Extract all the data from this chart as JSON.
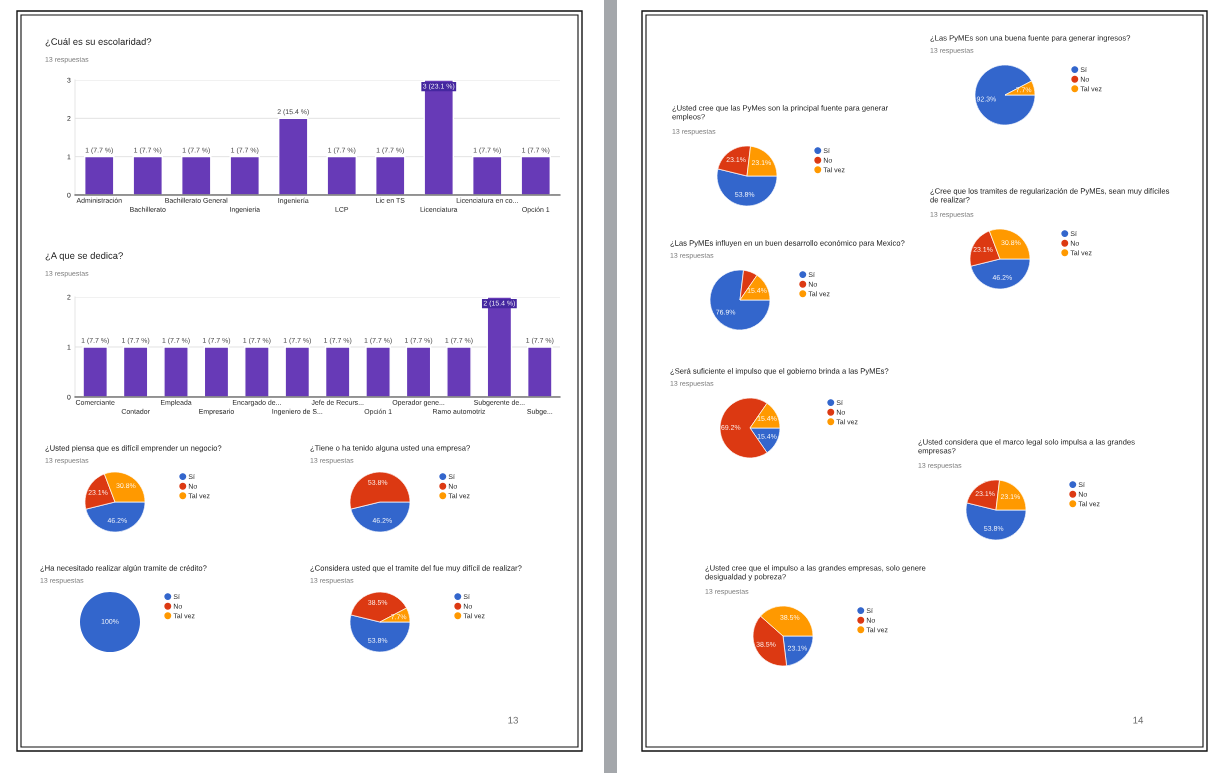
{
  "chart_data": [
    {
      "type": "pie",
      "title": "¿Las PyMEs son una buena fuente para generar ingresos?",
      "subtitle": "13 respuestas",
      "categories": [
        "Sí",
        "No",
        "Tal vez"
      ],
      "values": [
        92.3,
        0,
        7.7
      ],
      "colors": [
        "#3366cc",
        "#dc3912",
        "#ff9900"
      ],
      "value_labels": [
        "92.3%",
        null,
        "7.7%"
      ],
      "legend": "right"
    },
    {
      "type": "bar",
      "title": "¿Cuál es su escolaridad?",
      "subtitle": "13 respuestas",
      "categories": [
        "Administración",
        "Bachillerato",
        "Bachillerato General",
        "Ingenieria",
        "Ingeniería",
        "LCP",
        "Lic en TS",
        "Licenciatura",
        "Licenciatura en co...",
        "Opción 1"
      ],
      "values": [
        1,
        1,
        1,
        1,
        2,
        1,
        1,
        3,
        1,
        1
      ],
      "color": "#673ab7",
      "ylim": [
        0,
        3
      ],
      "yticks": [
        0,
        1,
        2,
        3
      ],
      "grid": "y",
      "value_labels": [
        "1 (7.7 %)",
        "1 (7.7 %)",
        "1 (7.7 %)",
        "1 (7.7 %)",
        "2 (15.4 %)",
        "1 (7.7 %)",
        "1 (7.7 %)",
        "3 (23.1 %)",
        "1 (7.7 %)",
        "1 (7.7 %)"
      ]
    },
    {
      "type": "pie",
      "title": "¿Usted cree que las PyMes son la principal fuente para generar\nempleos?",
      "subtitle": "13 respuestas",
      "categories": [
        "Sí",
        "No",
        "Tal vez"
      ],
      "values": [
        53.8,
        23.1,
        23.1
      ],
      "colors": [
        "#3366cc",
        "#dc3912",
        "#ff9900"
      ],
      "value_labels": [
        "53.8%",
        "23.1%",
        "23.1%"
      ],
      "legend": "right"
    },
    {
      "type": "pie",
      "title": "¿Cree que los tramites de regularización de PyMEs, sean muy difíciles\nde realizar?",
      "subtitle": "13 respuestas",
      "categories": [
        "Sí",
        "No",
        "Tal vez"
      ],
      "values": [
        46.2,
        23.1,
        30.8
      ],
      "colors": [
        "#3366cc",
        "#dc3912",
        "#ff9900"
      ],
      "value_labels": [
        "46.2%",
        "23.1%",
        "30.8%"
      ],
      "legend": "right"
    },
    {
      "type": "pie",
      "title": "¿Las PyMEs influyen en un buen desarrollo económico para Mexico?",
      "subtitle": "13 respuestas",
      "categories": [
        "Sí",
        "No",
        "Tal vez"
      ],
      "values": [
        76.9,
        7.7,
        15.4
      ],
      "colors": [
        "#3366cc",
        "#dc3912",
        "#ff9900"
      ],
      "value_labels": [
        "76.9%",
        null,
        "15.4%"
      ],
      "legend": "right"
    },
    {
      "type": "bar",
      "title": "¿A que se dedica?",
      "subtitle": "13 respuestas",
      "categories": [
        "Comerciante",
        "Contador",
        "Empleada",
        "Empresario",
        "Encargado de...",
        "Ingeniero de S...",
        "Jefe de Recurs...",
        "Opción 1",
        "Operador gene...",
        "Ramo automotriz",
        "Subgerente de...",
        "Subge..."
      ],
      "values": [
        1,
        1,
        1,
        1,
        1,
        1,
        1,
        1,
        1,
        1,
        2,
        1
      ],
      "color": "#673ab7",
      "ylim": [
        0,
        2
      ],
      "yticks": [
        0,
        1,
        2
      ],
      "grid": "y",
      "value_labels": [
        "1 (7.7 %)",
        "1 (7.7 %)",
        "1 (7.7 %)",
        "1 (7.7 %)",
        "1 (7.7 %)",
        "1 (7.7 %)",
        "1 (7.7 %)",
        "1 (7.7 %)",
        "1 (7.7 %)",
        "1 (7.7 %)",
        "2 (15.4 %)",
        "1 (7.7 %)"
      ]
    },
    {
      "type": "pie",
      "title": "¿Será suficiente el impulso que el gobierno brinda a las PyMEs?",
      "subtitle": "13 respuestas",
      "categories": [
        "Sí",
        "No",
        "Tal vez"
      ],
      "values": [
        15.4,
        69.2,
        15.4
      ],
      "colors": [
        "#3366cc",
        "#dc3912",
        "#ff9900"
      ],
      "value_labels": [
        "15.4%",
        "69.2%",
        "15.4%"
      ],
      "legend": "right"
    },
    {
      "type": "pie",
      "title": "¿Usted considera que el marco legal solo impulsa a las grandes\nempresas?",
      "subtitle": "13 respuestas",
      "categories": [
        "Sí",
        "No",
        "Tal vez"
      ],
      "values": [
        53.8,
        23.1,
        23.1
      ],
      "colors": [
        "#3366cc",
        "#dc3912",
        "#ff9900"
      ],
      "value_labels": [
        "53.8%",
        "23.1%",
        "23.1%"
      ],
      "legend": "right"
    },
    {
      "type": "pie",
      "title": "¿Usted piensa que es difícil emprender un negocio?",
      "subtitle": "13 respuestas",
      "categories": [
        "Sí",
        "No",
        "Tal vez"
      ],
      "values": [
        46.2,
        23.1,
        30.8
      ],
      "colors": [
        "#3366cc",
        "#dc3912",
        "#ff9900"
      ],
      "value_labels": [
        "46.2%",
        "23.1%",
        "30.8%"
      ],
      "legend": "right"
    },
    {
      "type": "pie",
      "title": "¿Tiene o ha tenido alguna usted una empresa?",
      "subtitle": "13 respuestas",
      "categories": [
        "Sí",
        "No",
        "Tal vez"
      ],
      "values": [
        46.2,
        53.8,
        0
      ],
      "colors": [
        "#3366cc",
        "#dc3912",
        "#ff9900"
      ],
      "value_labels": [
        "46.2%",
        "53.8%",
        null
      ],
      "legend": "right"
    },
    {
      "type": "pie",
      "title": "¿Ha necesitado realizar algún tramite de crédito?",
      "subtitle": "13 respuestas",
      "categories": [
        "Sí",
        "No",
        "Tal vez"
      ],
      "values": [
        100,
        0,
        0
      ],
      "colors": [
        "#3366cc",
        "#dc3912",
        "#ff9900"
      ],
      "value_labels": [
        "100%",
        null,
        null
      ],
      "legend": "right"
    },
    {
      "type": "pie",
      "title": "¿Considera usted que el tramite del fue muy difícil de realizar?",
      "subtitle": "13 respuestas",
      "categories": [
        "Sí",
        "No",
        "Tal vez"
      ],
      "values": [
        53.8,
        38.5,
        7.7
      ],
      "colors": [
        "#3366cc",
        "#dc3912",
        "#ff9900"
      ],
      "value_labels": [
        "53.8%",
        "38.5%",
        "7.7%"
      ],
      "legend": "right",
      "annotations": [
        "13"
      ]
    },
    {
      "type": "pie",
      "title": "¿Usted cree que el impulso a las grandes empresas, solo genere\ndesigualdad y pobreza?",
      "subtitle": "13 respuestas",
      "categories": [
        "Sí",
        "No",
        "Tal vez"
      ],
      "values": [
        23.1,
        38.5,
        38.5
      ],
      "colors": [
        "#3366cc",
        "#dc3912",
        "#ff9900"
      ],
      "value_labels": [
        "23.1%",
        "38.5%",
        "38.5%"
      ],
      "legend": "right",
      "annotations": [
        "14"
      ]
    }
  ]
}
